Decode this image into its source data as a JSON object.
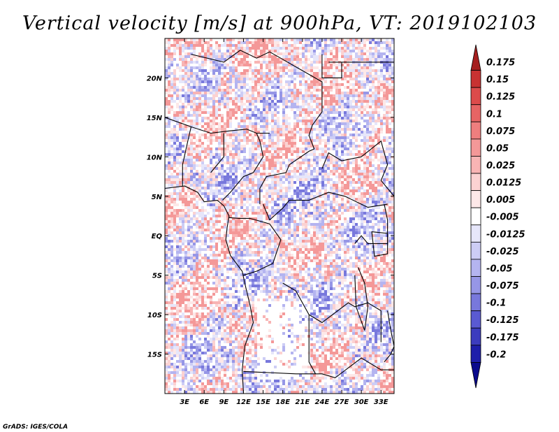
{
  "chart_data": {
    "type": "heatmap",
    "title": "Vertical velocity [m/s] at 900hPa, VT: 2019102103",
    "variable": "Vertical velocity",
    "units": "m/s",
    "level": "900hPa",
    "valid_time": "2019102103",
    "x_ticks": [
      "3E",
      "6E",
      "9E",
      "12E",
      "15E",
      "18E",
      "21E",
      "24E",
      "27E",
      "30E",
      "33E"
    ],
    "x_tick_values": [
      3,
      6,
      9,
      12,
      15,
      18,
      21,
      24,
      27,
      30,
      33
    ],
    "y_ticks": [
      "20N",
      "15N",
      "10N",
      "5N",
      "EQ",
      "5S",
      "10S",
      "15S"
    ],
    "y_tick_values": [
      20,
      15,
      10,
      5,
      0,
      -5,
      -10,
      -15
    ],
    "xlim": [
      0,
      35
    ],
    "ylim": [
      -20,
      25
    ],
    "colorbar": {
      "labels": [
        "0.175",
        "0.15",
        "0.125",
        "0.1",
        "0.075",
        "0.05",
        "0.025",
        "0.0125",
        "0.005",
        "-0.005",
        "-0.0125",
        "-0.025",
        "-0.05",
        "-0.075",
        "-0.1",
        "-0.125",
        "-0.175",
        "-0.2"
      ],
      "colors": [
        "#a51f1f",
        "#c83232",
        "#dc4b4b",
        "#e66464",
        "#ee7e7e",
        "#f49898",
        "#f8b4b4",
        "#fbd2d2",
        "#fde8e8",
        "#ffffff",
        "#e6e6fa",
        "#cdcdf5",
        "#b4b4f0",
        "#9696e6",
        "#7878dc",
        "#5a5ad2",
        "#3c3cbe",
        "#1e1eaa",
        "#0a0a8c"
      ]
    }
  },
  "credit": "GrADS: IGES/COLA"
}
